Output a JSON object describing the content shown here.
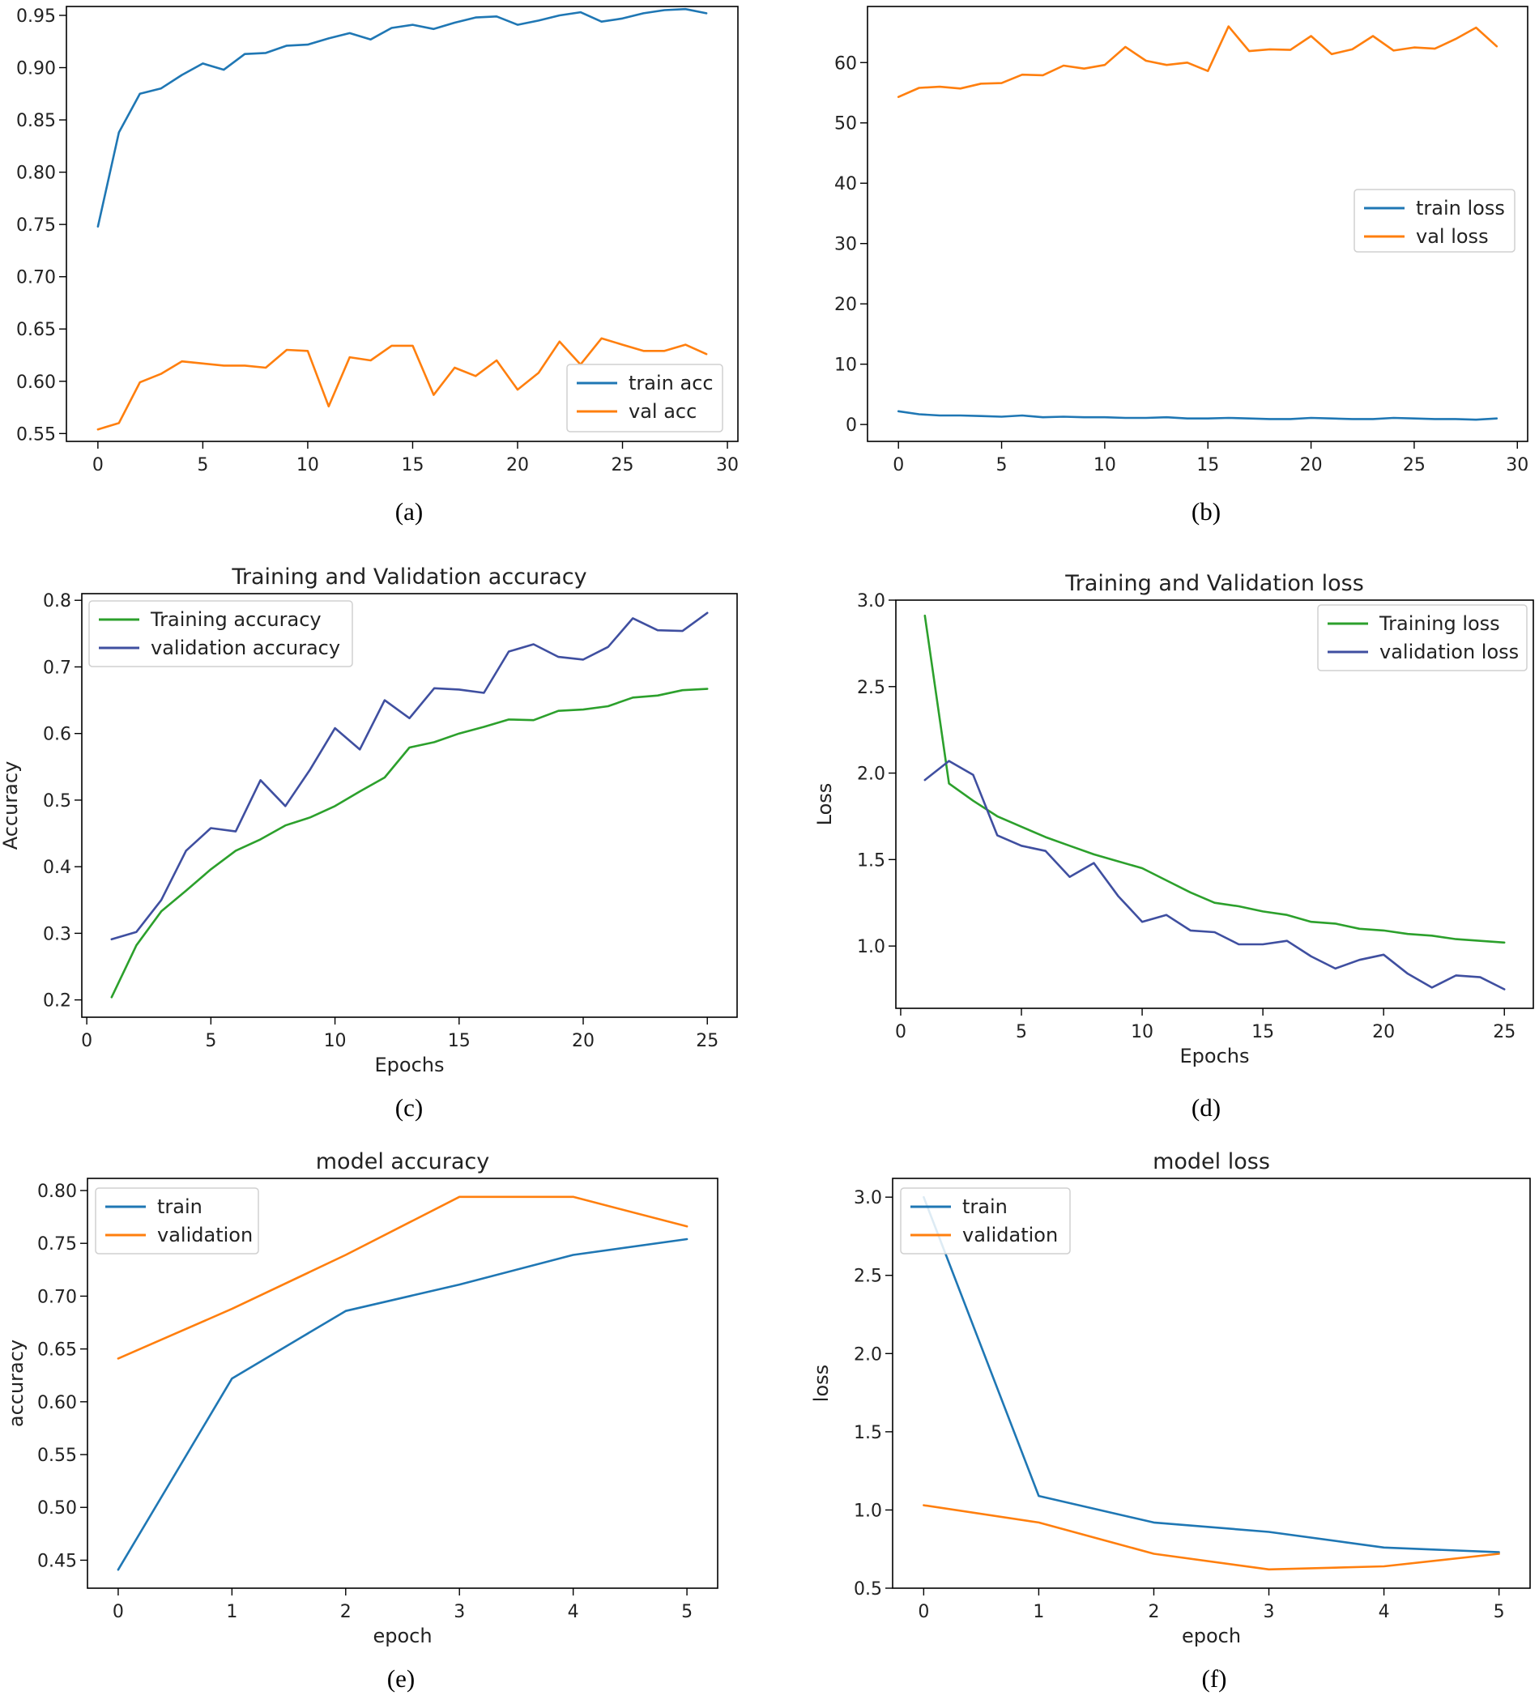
{
  "colors": {
    "tab_blue": "#1f77b4",
    "tab_orange": "#ff7f0e",
    "green": "#2ca02c",
    "navy": "#3f4fa0",
    "axis": "#000000"
  },
  "chart_data": [
    {
      "id": "a",
      "type": "line",
      "caption": "(a)",
      "title": "",
      "xlabel": "",
      "ylabel": "",
      "xlim": [
        -1.5,
        30.5
      ],
      "ylim": [
        0.5425,
        0.9585
      ],
      "xticks": [
        0,
        5,
        10,
        15,
        20,
        25,
        30
      ],
      "xtick_labels": [
        "0",
        "5",
        "10",
        "15",
        "20",
        "25",
        "30"
      ],
      "yticks": [
        0.55,
        0.6,
        0.65,
        0.7,
        0.75,
        0.8,
        0.85,
        0.9,
        0.95
      ],
      "ytick_labels": [
        "0.55",
        "0.60",
        "0.65",
        "0.70",
        "0.75",
        "0.80",
        "0.85",
        "0.90",
        "0.95"
      ],
      "legend_position": "lower-right",
      "series": [
        {
          "name": "train acc",
          "color": "#1f77b4",
          "x": [
            0,
            1,
            2,
            3,
            4,
            5,
            6,
            7,
            8,
            9,
            10,
            11,
            12,
            13,
            14,
            15,
            16,
            17,
            18,
            19,
            20,
            21,
            22,
            23,
            24,
            25,
            26,
            27,
            28,
            29
          ],
          "y": [
            0.748,
            0.838,
            0.875,
            0.88,
            0.893,
            0.904,
            0.898,
            0.913,
            0.914,
            0.921,
            0.922,
            0.928,
            0.933,
            0.927,
            0.938,
            0.941,
            0.937,
            0.943,
            0.948,
            0.949,
            0.941,
            0.945,
            0.95,
            0.953,
            0.944,
            0.947,
            0.952,
            0.955,
            0.956,
            0.952
          ]
        },
        {
          "name": "val acc",
          "color": "#ff7f0e",
          "x": [
            0,
            1,
            2,
            3,
            4,
            5,
            6,
            7,
            8,
            9,
            10,
            11,
            12,
            13,
            14,
            15,
            16,
            17,
            18,
            19,
            20,
            21,
            22,
            23,
            24,
            25,
            26,
            27,
            28,
            29
          ],
          "y": [
            0.554,
            0.56,
            0.599,
            0.607,
            0.619,
            0.617,
            0.615,
            0.615,
            0.613,
            0.63,
            0.629,
            0.576,
            0.623,
            0.62,
            0.634,
            0.634,
            0.587,
            0.613,
            0.605,
            0.62,
            0.592,
            0.608,
            0.638,
            0.616,
            0.641,
            0.635,
            0.629,
            0.629,
            0.635,
            0.626
          ]
        }
      ]
    },
    {
      "id": "b",
      "type": "line",
      "caption": "(b)",
      "title": "",
      "xlabel": "",
      "ylabel": "",
      "xlim": [
        -1.5,
        30.5
      ],
      "ylim": [
        -2.8,
        69.3
      ],
      "xticks": [
        0,
        5,
        10,
        15,
        20,
        25,
        30
      ],
      "xtick_labels": [
        "0",
        "5",
        "10",
        "15",
        "20",
        "25",
        "30"
      ],
      "yticks": [
        0,
        10,
        20,
        30,
        40,
        50,
        60
      ],
      "ytick_labels": [
        "0",
        "10",
        "20",
        "30",
        "40",
        "50",
        "60"
      ],
      "legend_position": "center-right",
      "series": [
        {
          "name": "train loss",
          "color": "#1f77b4",
          "x": [
            0,
            1,
            2,
            3,
            4,
            5,
            6,
            7,
            8,
            9,
            10,
            11,
            12,
            13,
            14,
            15,
            16,
            17,
            18,
            19,
            20,
            21,
            22,
            23,
            24,
            25,
            26,
            27,
            28,
            29
          ],
          "y": [
            2.2,
            1.7,
            1.5,
            1.5,
            1.4,
            1.3,
            1.5,
            1.2,
            1.3,
            1.2,
            1.2,
            1.1,
            1.1,
            1.2,
            1.0,
            1.0,
            1.1,
            1.0,
            0.9,
            0.9,
            1.1,
            1.0,
            0.9,
            0.9,
            1.1,
            1.0,
            0.9,
            0.9,
            0.8,
            1.0
          ]
        },
        {
          "name": "val loss",
          "color": "#ff7f0e",
          "x": [
            0,
            1,
            2,
            3,
            4,
            5,
            6,
            7,
            8,
            9,
            10,
            11,
            12,
            13,
            14,
            15,
            16,
            17,
            18,
            19,
            20,
            21,
            22,
            23,
            24,
            25,
            26,
            27,
            28,
            29
          ],
          "y": [
            54.3,
            55.8,
            56.0,
            55.7,
            56.5,
            56.6,
            58.0,
            57.9,
            59.5,
            59.0,
            59.6,
            62.6,
            60.3,
            59.6,
            60.0,
            58.6,
            66.0,
            61.9,
            62.2,
            62.1,
            64.4,
            61.4,
            62.2,
            64.4,
            62.0,
            62.5,
            62.3,
            63.9,
            65.8,
            62.7
          ]
        }
      ]
    },
    {
      "id": "c",
      "type": "line",
      "caption": "(c)",
      "title": "Training and Validation accuracy",
      "xlabel": "Epochs",
      "ylabel": "Accuracy",
      "xlim": [
        -0.2,
        26.2
      ],
      "ylim": [
        0.174,
        0.81
      ],
      "xticks": [
        0,
        5,
        10,
        15,
        20,
        25
      ],
      "xtick_labels": [
        "0",
        "5",
        "10",
        "15",
        "20",
        "25"
      ],
      "yticks": [
        0.2,
        0.3,
        0.4,
        0.5,
        0.6,
        0.7,
        0.8
      ],
      "ytick_labels": [
        "0.2",
        "0.3",
        "0.4",
        "0.5",
        "0.6",
        "0.7",
        "0.8"
      ],
      "legend_position": "upper-left",
      "series": [
        {
          "name": "Training accuracy",
          "color": "#2ca02c",
          "x": [
            1,
            2,
            3,
            4,
            5,
            6,
            7,
            8,
            9,
            10,
            11,
            12,
            13,
            14,
            15,
            16,
            17,
            18,
            19,
            20,
            21,
            22,
            23,
            24,
            25
          ],
          "y": [
            0.204,
            0.282,
            0.333,
            0.364,
            0.396,
            0.424,
            0.441,
            0.462,
            0.474,
            0.491,
            0.513,
            0.534,
            0.579,
            0.587,
            0.6,
            0.61,
            0.621,
            0.62,
            0.634,
            0.636,
            0.641,
            0.654,
            0.657,
            0.665,
            0.667
          ]
        },
        {
          "name": "validation accuracy",
          "color": "#3f4fa0",
          "x": [
            1,
            2,
            3,
            4,
            5,
            6,
            7,
            8,
            9,
            10,
            11,
            12,
            13,
            14,
            15,
            16,
            17,
            18,
            19,
            20,
            21,
            22,
            23,
            24,
            25
          ],
          "y": [
            0.291,
            0.302,
            0.35,
            0.424,
            0.458,
            0.453,
            0.53,
            0.491,
            0.546,
            0.608,
            0.576,
            0.65,
            0.623,
            0.668,
            0.666,
            0.661,
            0.723,
            0.734,
            0.715,
            0.711,
            0.73,
            0.773,
            0.755,
            0.754,
            0.781
          ]
        }
      ]
    },
    {
      "id": "d",
      "type": "line",
      "caption": "(d)",
      "title": "Training and Validation loss",
      "xlabel": "Epochs",
      "ylabel": "Loss",
      "xlim": [
        -0.2,
        26.2
      ],
      "ylim": [
        0.64,
        3.0
      ],
      "xticks": [
        0,
        5,
        10,
        15,
        20,
        25
      ],
      "xtick_labels": [
        "0",
        "5",
        "10",
        "15",
        "20",
        "25"
      ],
      "yticks": [
        1.0,
        1.5,
        2.0,
        2.5,
        3.0
      ],
      "ytick_labels": [
        "1.0",
        "1.5",
        "2.0",
        "2.5",
        "3.0"
      ],
      "legend_position": "upper-right",
      "series": [
        {
          "name": "Training loss",
          "color": "#2ca02c",
          "x": [
            1,
            2,
            3,
            4,
            5,
            6,
            7,
            8,
            9,
            10,
            11,
            12,
            13,
            14,
            15,
            16,
            17,
            18,
            19,
            20,
            21,
            22,
            23,
            24,
            25
          ],
          "y": [
            2.91,
            1.94,
            1.84,
            1.75,
            1.69,
            1.63,
            1.58,
            1.53,
            1.49,
            1.45,
            1.38,
            1.31,
            1.25,
            1.23,
            1.2,
            1.18,
            1.14,
            1.13,
            1.1,
            1.09,
            1.07,
            1.06,
            1.04,
            1.03,
            1.02
          ]
        },
        {
          "name": "validation loss",
          "color": "#3f4fa0",
          "x": [
            1,
            2,
            3,
            4,
            5,
            6,
            7,
            8,
            9,
            10,
            11,
            12,
            13,
            14,
            15,
            16,
            17,
            18,
            19,
            20,
            21,
            22,
            23,
            24,
            25
          ],
          "y": [
            1.96,
            2.07,
            1.99,
            1.64,
            1.58,
            1.55,
            1.4,
            1.48,
            1.29,
            1.14,
            1.18,
            1.09,
            1.08,
            1.01,
            1.01,
            1.03,
            0.94,
            0.87,
            0.92,
            0.95,
            0.84,
            0.76,
            0.83,
            0.82,
            0.75
          ]
        }
      ]
    },
    {
      "id": "e",
      "type": "line",
      "caption": "(e)",
      "title": "model accuracy",
      "xlabel": "epoch",
      "ylabel": "accuracy",
      "xlim": [
        -0.27,
        5.27
      ],
      "ylim": [
        0.4235,
        0.8115
      ],
      "xticks": [
        0,
        1,
        2,
        3,
        4,
        5
      ],
      "xtick_labels": [
        "0",
        "1",
        "2",
        "3",
        "4",
        "5"
      ],
      "yticks": [
        0.45,
        0.5,
        0.55,
        0.6,
        0.65,
        0.7,
        0.75,
        0.8
      ],
      "ytick_labels": [
        "0.45",
        "0.50",
        "0.55",
        "0.60",
        "0.65",
        "0.70",
        "0.75",
        "0.80"
      ],
      "legend_position": "upper-left",
      "series": [
        {
          "name": "train",
          "color": "#1f77b4",
          "x": [
            0,
            1,
            2,
            3,
            4,
            5
          ],
          "y": [
            0.441,
            0.622,
            0.686,
            0.711,
            0.739,
            0.754
          ]
        },
        {
          "name": "validation",
          "color": "#ff7f0e",
          "x": [
            0,
            1,
            2,
            3,
            4,
            5
          ],
          "y": [
            0.641,
            0.688,
            0.739,
            0.794,
            0.794,
            0.766
          ]
        }
      ]
    },
    {
      "id": "f",
      "type": "line",
      "caption": "(f)",
      "title": "model loss",
      "xlabel": "epoch",
      "ylabel": "loss",
      "xlim": [
        -0.27,
        5.27
      ],
      "ylim": [
        0.5,
        3.12
      ],
      "xticks": [
        0,
        1,
        2,
        3,
        4,
        5
      ],
      "xtick_labels": [
        "0",
        "1",
        "2",
        "3",
        "4",
        "5"
      ],
      "yticks": [
        0.5,
        1.0,
        1.5,
        2.0,
        2.5,
        3.0
      ],
      "ytick_labels": [
        "0.5",
        "1.0",
        "1.5",
        "2.0",
        "2.5",
        "3.0"
      ],
      "legend_position": "upper-left",
      "series": [
        {
          "name": "train",
          "color": "#1f77b4",
          "x": [
            0,
            1,
            2,
            3,
            4,
            5
          ],
          "y": [
            3.0,
            1.09,
            0.92,
            0.86,
            0.76,
            0.73
          ]
        },
        {
          "name": "validation",
          "color": "#ff7f0e",
          "x": [
            0,
            1,
            2,
            3,
            4,
            5
          ],
          "y": [
            1.03,
            0.92,
            0.72,
            0.62,
            0.64,
            0.72
          ]
        }
      ]
    }
  ]
}
